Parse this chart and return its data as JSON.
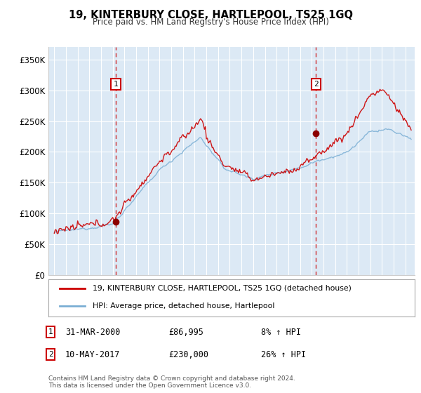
{
  "title": "19, KINTERBURY CLOSE, HARTLEPOOL, TS25 1GQ",
  "subtitle": "Price paid vs. HM Land Registry's House Price Index (HPI)",
  "line1_label": "19, KINTERBURY CLOSE, HARTLEPOOL, TS25 1GQ (detached house)",
  "line2_label": "HPI: Average price, detached house, Hartlepool",
  "line1_color": "#cc0000",
  "line2_color": "#7bafd4",
  "marker_color": "#8b0000",
  "vline_color": "#cc0000",
  "shade_color": "#dce9f5",
  "annotation1": {
    "num": "1",
    "date": "31-MAR-2000",
    "price": "£86,995",
    "pct": "8% ↑ HPI"
  },
  "annotation2": {
    "num": "2",
    "date": "10-MAY-2017",
    "price": "£230,000",
    "pct": "26% ↑ HPI"
  },
  "ylabel_ticks": [
    "£0",
    "£50K",
    "£100K",
    "£150K",
    "£200K",
    "£250K",
    "£300K",
    "£350K"
  ],
  "ylim": [
    0,
    370000
  ],
  "year_start": 1995,
  "year_end": 2025,
  "sale1_year": 2000.25,
  "sale1_price": 86995,
  "sale2_year": 2017.37,
  "sale2_price": 230000,
  "background_color": "#ffffff",
  "plot_bg_color": "#dce9f5",
  "grid_color": "#ffffff",
  "footer": "Contains HM Land Registry data © Crown copyright and database right 2024.\nThis data is licensed under the Open Government Licence v3.0."
}
